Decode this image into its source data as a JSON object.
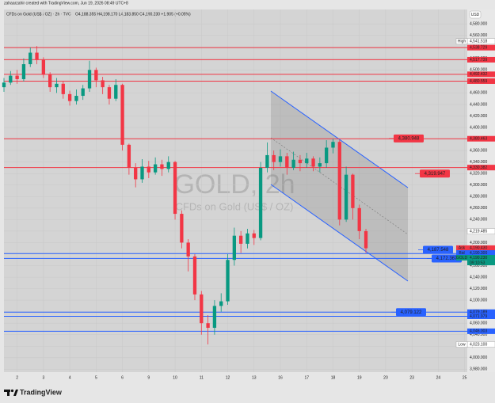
{
  "chart_data": {
    "type": "candlestick",
    "credit": "zahaarzahir created with TradingView.com, Jun 19, 2026 08:49 UTC+8",
    "title": "CFDs on Gold (US$ / OZ) · 2h · TVC",
    "ohlc_text": "O4,188.355 H4,198.170 L4,183.850 C4,190.230 +1.905 (+0.05%)",
    "watermark": "GOLD, 2h",
    "watermark_sub": "CFDs on Gold (US$ / OZ)",
    "currency": "USD",
    "brand": "TradingView",
    "up_color": "#089981",
    "down_color": "#f23645",
    "grid": true,
    "x": [
      -0.5,
      -0.25,
      0,
      0.25,
      0.5,
      0.75,
      1,
      1.25,
      1.5,
      1.75,
      2,
      2.25,
      2.5,
      2.75,
      3,
      3.25,
      3.5,
      3.75,
      4,
      4.25,
      4.5,
      4.75,
      5,
      5.25,
      5.5,
      5.75,
      6,
      6.25,
      6.5,
      6.75,
      7,
      7.25,
      7.5,
      7.75,
      8,
      8.25,
      8.5,
      8.75,
      9,
      9.25,
      9.5,
      9.75,
      10,
      10.25,
      10.5,
      10.75,
      11,
      11.25,
      11.5,
      11.75,
      12,
      12.25,
      12.5,
      12.75,
      13,
      13.25
    ],
    "open": [
      4470,
      4478,
      4490,
      4484,
      4510,
      4530,
      4518,
      4492,
      4470,
      4476,
      4458,
      4446,
      4455,
      4468,
      4500,
      4482,
      4470,
      4450,
      4474,
      4370,
      4330,
      4310,
      4332,
      4322,
      4336,
      4328,
      4340,
      4250,
      4200,
      4176,
      4110,
      4060,
      4052,
      4090,
      4098,
      4170,
      4212,
      4198,
      4216,
      4208,
      4330,
      4352,
      4340,
      4350,
      4330,
      4344,
      4338,
      4346,
      4332,
      4338,
      4365,
      4375,
      4240,
      4318,
      4260,
      4220
    ],
    "high": [
      4486,
      4498,
      4500,
      4520,
      4539,
      4541.518,
      4522,
      4496,
      4486,
      4480,
      4464,
      4466,
      4474,
      4516,
      4504,
      4488,
      4474,
      4484,
      4476,
      4372,
      4338,
      4345,
      4342,
      4348,
      4344,
      4350,
      4342,
      4256,
      4206,
      4180,
      4116,
      4074,
      4100,
      4112,
      4180,
      4226,
      4220,
      4224,
      4222,
      4340,
      4374,
      4360,
      4362,
      4356,
      4358,
      4352,
      4356,
      4350,
      4348,
      4378,
      4380.5,
      4378,
      4332,
      4320,
      4266,
      4224
    ],
    "low": [
      4462,
      4474,
      4476,
      4480,
      4505,
      4510,
      4486,
      4462,
      4460,
      4450,
      4438,
      4440,
      4448,
      4462,
      4470,
      4458,
      4440,
      4446,
      4360,
      4318,
      4296,
      4304,
      4312,
      4318,
      4316,
      4322,
      4240,
      4190,
      4150,
      4100,
      4040,
      4023.1,
      4040,
      4080,
      4092,
      4160,
      4182,
      4190,
      4196,
      4204,
      4322,
      4326,
      4332,
      4318,
      4326,
      4324,
      4330,
      4324,
      4322,
      4330,
      4355,
      4230,
      4236,
      4240,
      4206,
      4182
    ],
    "close": [
      4478,
      4490,
      4484,
      4510,
      4530,
      4518,
      4492,
      4470,
      4476,
      4458,
      4446,
      4455,
      4468,
      4500,
      4482,
      4470,
      4450,
      4474,
      4370,
      4330,
      4310,
      4332,
      4322,
      4336,
      4328,
      4340,
      4250,
      4200,
      4176,
      4110,
      4060,
      4052,
      4090,
      4098,
      4170,
      4212,
      4198,
      4216,
      4208,
      4330,
      4352,
      4340,
      4350,
      4330,
      4344,
      4338,
      4346,
      4332,
      4338,
      4365,
      4375,
      4240,
      4318,
      4260,
      4220,
      4190.23
    ],
    "xlim": [
      -0.5,
      17.1
    ],
    "ylim": [
      3975,
      4605
    ],
    "xticks": [
      {
        "value": 0,
        "label": "2"
      },
      {
        "value": 1,
        "label": "3"
      },
      {
        "value": 2,
        "label": "4"
      },
      {
        "value": 3,
        "label": "5"
      },
      {
        "value": 4,
        "label": "6"
      },
      {
        "value": 5,
        "label": "9"
      },
      {
        "value": 6,
        "label": "10"
      },
      {
        "value": 7,
        "label": "11"
      },
      {
        "value": 8,
        "label": "12"
      },
      {
        "value": 9,
        "label": "13"
      },
      {
        "value": 10,
        "label": "16"
      },
      {
        "value": 11,
        "label": "17"
      },
      {
        "value": 12,
        "label": "18"
      },
      {
        "value": 13,
        "label": "19"
      },
      {
        "value": 14,
        "label": "20"
      },
      {
        "value": 15,
        "label": "23"
      },
      {
        "value": 16,
        "label": "24"
      },
      {
        "value": 17,
        "label": "25"
      }
    ],
    "yticks": [
      {
        "value": 4580,
        "label": "4,580.000"
      },
      {
        "value": 4560,
        "label": "4,560.000"
      },
      {
        "value": 4540,
        "label": "4,540.000"
      },
      {
        "value": 4520,
        "label": "4,520.000"
      },
      {
        "value": 4500,
        "label": "4,500.000"
      },
      {
        "value": 4480,
        "label": "4,480.000"
      },
      {
        "value": 4460,
        "label": "4,460.000"
      },
      {
        "value": 4440,
        "label": "4,440.000"
      },
      {
        "value": 4420,
        "label": "4,420.000"
      },
      {
        "value": 4400,
        "label": "4,400.000"
      },
      {
        "value": 4380,
        "label": "4,380.000"
      },
      {
        "value": 4360,
        "label": "4,360.000"
      },
      {
        "value": 4340,
        "label": "4,340.000"
      },
      {
        "value": 4320,
        "label": "4,320.000"
      },
      {
        "value": 4300,
        "label": "4,300.000"
      },
      {
        "value": 4280,
        "label": "4,280.000"
      },
      {
        "value": 4260,
        "label": "4,260.000"
      },
      {
        "value": 4240,
        "label": "4,240.000"
      },
      {
        "value": 4220,
        "label": "4,220.000"
      },
      {
        "value": 4200,
        "label": "4,200.000"
      },
      {
        "value": 4180,
        "label": "4,180.000"
      },
      {
        "value": 4160,
        "label": "4,160.000"
      },
      {
        "value": 4140,
        "label": "4,140.000"
      },
      {
        "value": 4120,
        "label": "4,120.000"
      },
      {
        "value": 4100,
        "label": "4,100.000"
      },
      {
        "value": 4080,
        "label": "4,080.000"
      },
      {
        "value": 4060,
        "label": "4,060.000"
      },
      {
        "value": 4040,
        "label": "4,040.000"
      },
      {
        "value": 4020,
        "label": "4,020.000"
      },
      {
        "value": 4000,
        "label": "4,000.000"
      },
      {
        "value": 3980,
        "label": "3,980.000"
      }
    ],
    "levels": [
      {
        "value": 4538.729,
        "label": "4,538.729",
        "color": "#f23645"
      },
      {
        "value": 4517.739,
        "label": "4,517.739",
        "color": "#f23645"
      },
      {
        "value": 4492.432,
        "label": "4,492.432",
        "color": "#f23645"
      },
      {
        "value": 4480.559,
        "label": "4,480.559",
        "color": "#f23645"
      },
      {
        "value": 4380.463,
        "label": "4,380.463",
        "color": "#f23645"
      },
      {
        "value": 4330.382,
        "label": "4,330.382",
        "color": "#f23645"
      },
      {
        "value": 4180.96,
        "label": "4,180.960",
        "color": "#2962ff"
      },
      {
        "value": 4172.639,
        "label": "4,172.639",
        "color": "#2962ff"
      },
      {
        "value": 4079.189,
        "label": "4,079.189",
        "color": "#2962ff"
      },
      {
        "value": 4071.979,
        "label": "4,071.979",
        "color": "#2962ff"
      },
      {
        "value": 4046.003,
        "label": "4,046.003",
        "color": "#2962ff"
      }
    ],
    "price_tags": [
      {
        "name": "High",
        "value": 4541.518,
        "label": "4,541.518"
      },
      {
        "name": "Low",
        "value": 4023.1,
        "label": "4,023.100"
      },
      {
        "value": 4219.485,
        "label": "4,219.485"
      },
      {
        "name": "Ask",
        "value": 4190.43,
        "label": "4,190.430",
        "color": "#f23645"
      },
      {
        "name": "Bid",
        "value": 4190.3,
        "label": "4,190.300",
        "color": "#2962ff"
      },
      {
        "name": "GOLD",
        "value": 4190.23,
        "label": "4,190.230",
        "color": "#089981",
        "countdown": "09:10:53"
      }
    ],
    "annotations": [
      {
        "value": 4380.948,
        "label": "4,380.948",
        "color": "#f23645"
      },
      {
        "value": 4319.947,
        "label": "4,319.947",
        "color": "#f23645"
      },
      {
        "value": 4187.548,
        "label": "4,187.548",
        "color": "#2962ff"
      },
      {
        "value": 4172.367,
        "label": "4,172.367",
        "color": "#2962ff"
      },
      {
        "value": 4079.122,
        "label": "4,079.122",
        "color": "#2962ff"
      }
    ]
  }
}
